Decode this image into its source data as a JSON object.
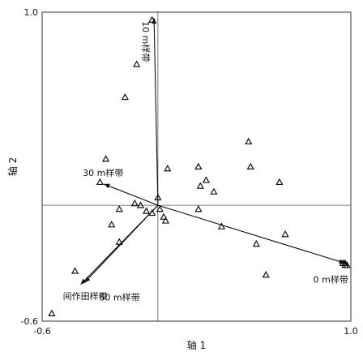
{
  "chart_data": {
    "type": "scatter",
    "title": "",
    "xlabel": "轴 1",
    "ylabel": "轴 2",
    "xlim": [
      -0.6,
      1.0
    ],
    "ylim": [
      -0.6,
      1.0
    ],
    "x_tick_labels": [
      {
        "value": -0.6,
        "text": "-0.6"
      },
      {
        "value": 1.0,
        "text": "1.0"
      }
    ],
    "y_tick_labels": [
      {
        "value": 1.0,
        "text": "1.0"
      },
      {
        "value": -0.6,
        "text": "-0.6"
      }
    ],
    "grid": false,
    "zero_lines": true,
    "point_marker": "open-triangle",
    "points": [
      {
        "x": -0.03,
        "y": 0.96
      },
      {
        "x": -0.11,
        "y": 0.73
      },
      {
        "x": -0.17,
        "y": 0.56
      },
      {
        "x": -0.27,
        "y": 0.24
      },
      {
        "x": -0.3,
        "y": 0.12
      },
      {
        "x": -0.24,
        "y": -0.1
      },
      {
        "x": -0.2,
        "y": -0.02
      },
      {
        "x": -0.12,
        "y": 0.01
      },
      {
        "x": -0.09,
        "y": 0.0
      },
      {
        "x": -0.06,
        "y": -0.03
      },
      {
        "x": -0.03,
        "y": -0.04
      },
      {
        "x": 0.0,
        "y": 0.04
      },
      {
        "x": 0.01,
        "y": -0.02
      },
      {
        "x": 0.03,
        "y": -0.06
      },
      {
        "x": 0.04,
        "y": -0.08
      },
      {
        "x": 0.05,
        "y": 0.19
      },
      {
        "x": -0.2,
        "y": -0.19
      },
      {
        "x": -0.43,
        "y": -0.34
      },
      {
        "x": -0.55,
        "y": -0.56
      },
      {
        "x": 0.21,
        "y": 0.2
      },
      {
        "x": 0.22,
        "y": 0.1
      },
      {
        "x": 0.25,
        "y": 0.13
      },
      {
        "x": 0.29,
        "y": 0.07
      },
      {
        "x": 0.21,
        "y": -0.02
      },
      {
        "x": 0.33,
        "y": -0.11
      },
      {
        "x": 0.47,
        "y": 0.33
      },
      {
        "x": 0.48,
        "y": 0.2
      },
      {
        "x": 0.51,
        "y": -0.2
      },
      {
        "x": 0.56,
        "y": -0.36
      },
      {
        "x": 0.63,
        "y": 0.12
      },
      {
        "x": 0.66,
        "y": -0.15
      },
      {
        "x": 0.96,
        "y": -0.3
      },
      {
        "x": 0.97,
        "y": -0.31
      },
      {
        "x": 0.98,
        "y": -0.31
      },
      {
        "x": 0.97,
        "y": -0.3
      }
    ],
    "vectors": [
      {
        "label": "10 m样带",
        "x": -0.02,
        "y": 0.97,
        "label_anchor": "top"
      },
      {
        "label": "30 m样带",
        "x": -0.28,
        "y": 0.11,
        "label_anchor": "upper-left"
      },
      {
        "label": "60 m样带",
        "x": -0.38,
        "y": -0.4,
        "label_anchor": "lower-right"
      },
      {
        "label": "间作田样带",
        "x": -0.4,
        "y": -0.41,
        "label_anchor": "lower-left"
      },
      {
        "label": "0 m样带",
        "x": 0.97,
        "y": -0.3,
        "label_anchor": "lower-right"
      }
    ]
  }
}
